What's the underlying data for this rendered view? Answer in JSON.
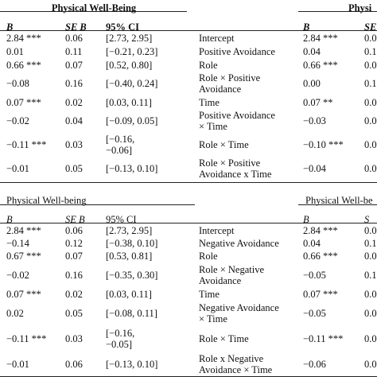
{
  "sections": [
    {
      "title": "Physical Well-Being",
      "title_right": "Physi",
      "headers": {
        "b": "B",
        "se": "SE B",
        "ci": "95% CI",
        "b2": "B",
        "se2": "SE"
      },
      "rows": [
        {
          "b": "2.84 ***",
          "se": "0.06",
          "ci": [
            "[2.73, 2.95]"
          ],
          "predictor": [
            "Intercept"
          ],
          "b2": "2.84 ***",
          "se2": "0.0"
        },
        {
          "b": "0.01",
          "se": "0.11",
          "ci": [
            "[−0.21, 0.23]"
          ],
          "predictor": [
            "Positive Avoidance"
          ],
          "b2": "0.04",
          "se2": "0.1"
        },
        {
          "b": "0.66 ***",
          "se": "0.07",
          "ci": [
            "[0.52, 0.80]"
          ],
          "predictor": [
            "Role"
          ],
          "b2": "0.66 ***",
          "se2": "0.0"
        },
        {
          "b": "−0.08",
          "se": "0.16",
          "ci": [
            "[−0.40, 0.24]"
          ],
          "predictor": [
            "Role × Positive",
            "Avoidance"
          ],
          "b2": "0.00",
          "se2": "0.1"
        },
        {
          "b": "0.07 ***",
          "se": "0.02",
          "ci": [
            "[0.03, 0.11]"
          ],
          "predictor": [
            "Time"
          ],
          "b2": "0.07 **",
          "se2": "0.0"
        },
        {
          "b": "−0.02",
          "se": "0.04",
          "ci": [
            "[−0.09, 0.05]"
          ],
          "predictor": [
            "Positive Avoidance",
            "× Time"
          ],
          "b2": "−0.03",
          "se2": "0.0"
        },
        {
          "b": "−0.11 ***",
          "se": "0.03",
          "ci": [
            "[−0.16,",
            "−0.06]"
          ],
          "predictor": [
            "Role × Time"
          ],
          "b2": "−0.10 ***",
          "se2": "0.0"
        },
        {
          "b": "−0.01",
          "se": "0.05",
          "ci": [
            "[−0.13, 0.10]"
          ],
          "predictor": [
            "Role × Positive",
            "Avoidance x Time"
          ],
          "b2": "−0.04",
          "se2": "0.0"
        }
      ]
    },
    {
      "title": "Physical Well-being",
      "title_right": "Physical Well-be",
      "headers": {
        "b": "B",
        "se": "SE B",
        "ci": "95% CI",
        "b2": "B",
        "se2": "S"
      },
      "rows": [
        {
          "b": "2.84 ***",
          "se": "0.06",
          "ci": [
            "[2.73, 2.95]"
          ],
          "predictor": [
            "Intercept"
          ],
          "b2": "2.84 ***",
          "se2": "0.0"
        },
        {
          "b": "−0.14",
          "se": "0.12",
          "ci": [
            "[−0.38, 0.10]"
          ],
          "predictor": [
            "Negative Avoidance"
          ],
          "b2": "0.04",
          "se2": "0.1"
        },
        {
          "b": "0.67 ***",
          "se": "0.07",
          "ci": [
            "[0.53, 0.81]"
          ],
          "predictor": [
            "Role"
          ],
          "b2": "0.66 ***",
          "se2": "0.0"
        },
        {
          "b": "−0.02",
          "se": "0.16",
          "ci": [
            "[−0.35, 0.30]"
          ],
          "predictor": [
            "Role × Negative",
            "Avoidance"
          ],
          "b2": "−0.05",
          "se2": "0.1"
        },
        {
          "b": "0.07 ***",
          "se": "0.02",
          "ci": [
            "[0.03, 0.11]"
          ],
          "predictor": [
            "Time"
          ],
          "b2": "0.07 ***",
          "se2": "0.0"
        },
        {
          "b": "0.02",
          "se": "0.05",
          "ci": [
            "[−0.08, 0.11]"
          ],
          "predictor": [
            "Negative Avoidance",
            "× Time"
          ],
          "b2": "−0.05",
          "se2": "0.0"
        },
        {
          "b": "−0.11 ***",
          "se": "0.03",
          "ci": [
            "[−0.16,",
            "−0.05]"
          ],
          "predictor": [
            "Role × Time"
          ],
          "b2": "−0.11 ***",
          "se2": "0.0"
        },
        {
          "b": "−0.01",
          "se": "0.06",
          "ci": [
            "[−0.13, 0.10]"
          ],
          "predictor": [
            "Role x Negative",
            "Avoidance × Time"
          ],
          "b2": "−0.06",
          "se2": "0.0"
        }
      ]
    }
  ]
}
